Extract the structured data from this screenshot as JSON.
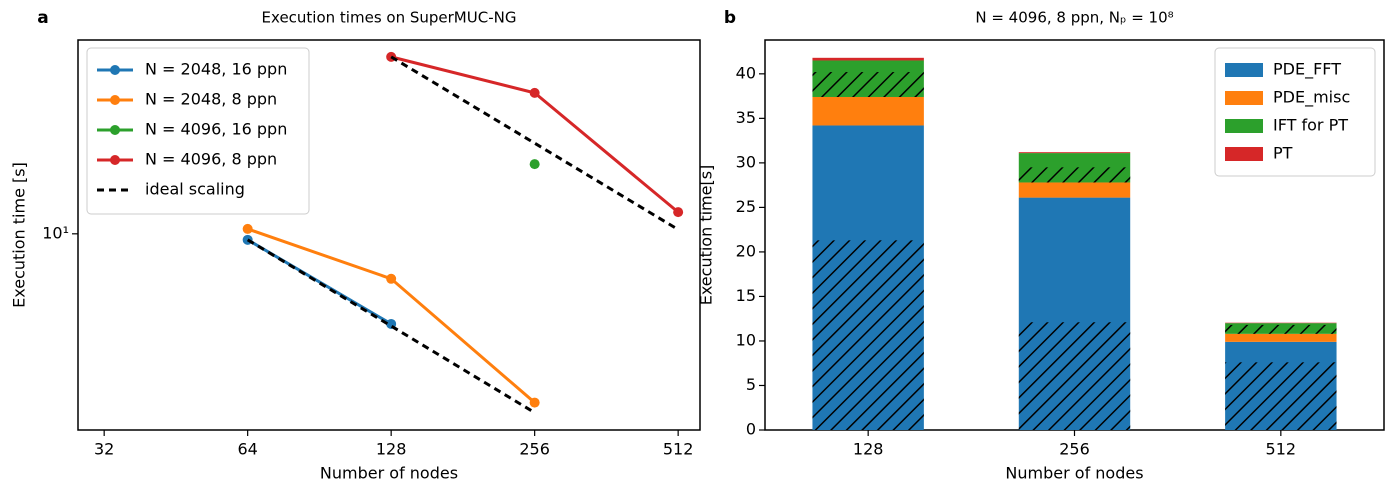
{
  "chart_data": [
    {
      "type": "line",
      "panel_label": "a",
      "title": "Execution times on SuperMUC-NG",
      "x_label": "Number of nodes",
      "y_label": "Execution time [s]",
      "x_scale": "log2",
      "y_scale": "log",
      "xlim": [
        28.2,
        569
      ],
      "xticks": [
        32,
        64,
        128,
        256,
        512
      ],
      "ylim": [
        2.07,
        47.4
      ],
      "yticks": [
        {
          "value": 10,
          "label": "10¹"
        }
      ],
      "legend": "upper left",
      "series": [
        {
          "name": "N = 2048, 16 ppn",
          "color": "#1f77b4",
          "x": [
            64,
            128
          ],
          "values": [
            9.53,
            4.85
          ]
        },
        {
          "name": "N = 2048, 8 ppn",
          "color": "#ff7f0e",
          "x": [
            64,
            128,
            256
          ],
          "values": [
            10.4,
            6.97,
            2.58
          ]
        },
        {
          "name": "N = 4096, 16 ppn",
          "color": "#2ca02c",
          "x": [
            256
          ],
          "values": [
            17.5
          ]
        },
        {
          "name": "N = 4096, 8 ppn",
          "color": "#d62728",
          "x": [
            128,
            256,
            512
          ],
          "values": [
            41.4,
            31.0,
            11.9
          ]
        },
        {
          "name": "ideal scaling",
          "color": "#000000",
          "linestyle": "dashed",
          "x": [
            64,
            128,
            256,
            null,
            128,
            256,
            512
          ],
          "values": [
            9.53,
            4.77,
            2.38,
            null,
            41.4,
            20.7,
            10.35
          ]
        }
      ]
    },
    {
      "type": "stacked_bar",
      "panel_label": "b",
      "title": "N = 4096, 8 ppn, Nₚ = 10⁸",
      "x_label": "Number of nodes",
      "y_label": "Execution time[s]",
      "categories": [
        "128",
        "256",
        "512"
      ],
      "ylim": [
        0,
        43.8
      ],
      "yticks": [
        0,
        5,
        10,
        15,
        20,
        25,
        30,
        35,
        40
      ],
      "legend": "upper right",
      "series": [
        {
          "name": "PDE_FFT",
          "color": "#1f77b4",
          "values": [
            34.2,
            26.1,
            9.9
          ],
          "hatched_values": [
            21.3,
            12.1,
            7.6
          ]
        },
        {
          "name": "PDE_misc",
          "color": "#ff7f0e",
          "values": [
            3.2,
            1.7,
            0.9
          ],
          "hatched_values": [
            null,
            null,
            null
          ]
        },
        {
          "name": "IFT for PT",
          "color": "#2ca02c",
          "values": [
            4.1,
            3.3,
            1.2
          ],
          "hatched_values": [
            2.8,
            1.7,
            1.0
          ]
        },
        {
          "name": "PT",
          "color": "#d62728",
          "values": [
            0.3,
            0.1,
            0.05
          ],
          "hatched_values": [
            null,
            null,
            null
          ]
        }
      ]
    }
  ]
}
